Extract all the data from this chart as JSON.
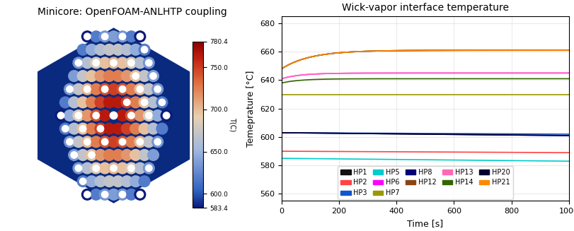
{
  "title_left": "Minicore: OpenFOAM-ANLHTP coupling",
  "title_right": "Wick-vapor interface temperature",
  "xlabel": "Time [s]",
  "ylabel": "Temeprature [°C]",
  "colorbar_label": "T(C)",
  "colorbar_ticks": [
    583.4,
    600.0,
    650.0,
    700.0,
    750.0,
    780.4
  ],
  "xlim": [
    0,
    1000
  ],
  "ylim": [
    555,
    685
  ],
  "yticks": [
    560,
    580,
    600,
    620,
    640,
    660,
    680
  ],
  "series": {
    "HP1": {
      "color": "#111111",
      "start": 648,
      "end": 661,
      "rise_time": 300,
      "flat_start": null
    },
    "HP2": {
      "color": "#FF4444",
      "start": 590,
      "end": 589,
      "rise_time": null,
      "flat_start": null
    },
    "HP3": {
      "color": "#1155CC",
      "start": 603,
      "end": 602,
      "rise_time": null,
      "flat_start": null
    },
    "HP5": {
      "color": "#00CCCC",
      "start": 585,
      "end": 583,
      "rise_time": null,
      "flat_start": null
    },
    "HP6": {
      "color": "#FF00FF",
      "start": 641,
      "end": 645,
      "rise_time": 200,
      "flat_start": null
    },
    "HP7": {
      "color": "#999900",
      "start": 630,
      "end": 630,
      "rise_time": null,
      "flat_start": null
    },
    "HP8": {
      "color": "#000077",
      "start": 603,
      "end": 601,
      "rise_time": null,
      "flat_start": null
    },
    "HP12": {
      "color": "#8B4513",
      "start": 648,
      "end": 661,
      "rise_time": 300,
      "flat_start": null
    },
    "HP13": {
      "color": "#FF69B4",
      "start": 641,
      "end": 645,
      "rise_time": 200,
      "flat_start": null
    },
    "HP14": {
      "color": "#336600",
      "start": 638,
      "end": 641,
      "rise_time": 200,
      "flat_start": null
    },
    "HP20": {
      "color": "#000033",
      "start": 603,
      "end": 601,
      "rise_time": null,
      "flat_start": null
    },
    "HP21": {
      "color": "#FF8800",
      "start": 648,
      "end": 661,
      "rise_time": 300,
      "flat_start": null
    }
  },
  "legend_rows": [
    [
      "HP1",
      "HP2",
      "HP3",
      "HP5"
    ],
    [
      "HP6",
      "HP7",
      "HP8",
      "HP12",
      "HP13"
    ],
    [
      "HP14",
      "HP20",
      "HP21"
    ]
  ],
  "hex_bg_color": "#1a3a8a",
  "colormap_colors": [
    "#1a3a9a",
    "#a0b4e0",
    "#f0e0c0",
    "#e08060",
    "#c03020",
    "#8b0000"
  ]
}
